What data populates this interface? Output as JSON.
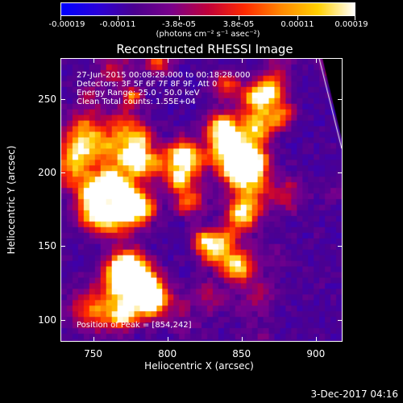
{
  "colorbar": {
    "colors": [
      "#0000ff",
      "#2a00d8",
      "#4b008f",
      "#7a008a",
      "#c0003a",
      "#ff2a00",
      "#ff8800",
      "#ffd000",
      "#ffffff"
    ],
    "tick_labels": [
      "-0.00019",
      "-0.00011",
      "-3.8e-05",
      "3.8e-05",
      "0.00011",
      "0.00019"
    ],
    "units_label": "(photons cm⁻² s⁻¹ asec⁻²)"
  },
  "title": "Reconstructed RHESSI Image",
  "info": {
    "line1": "27-Jun-2015 00:08:28.000 to 00:18:28.000",
    "line2": "Detectors: 3F 5F 6F 7F 8F 9F, Att 0",
    "line3": "Energy Range: 25.0 - 50.0 keV",
    "line4": "Clean     Total counts: 1.55E+04",
    "peak": "Position of Peak = [854,242]"
  },
  "axes": {
    "xlabel": "Heliocentric X (arcsec)",
    "ylabel": "Heliocentric Y (arcsec)",
    "xlim": [
      728,
      918
    ],
    "ylim": [
      85,
      278
    ],
    "xticks": [
      "750",
      "800",
      "850",
      "900"
    ],
    "yticks": [
      "100",
      "150",
      "200",
      "250"
    ]
  },
  "timestamp": "3-Dec-2017 04:16"
}
